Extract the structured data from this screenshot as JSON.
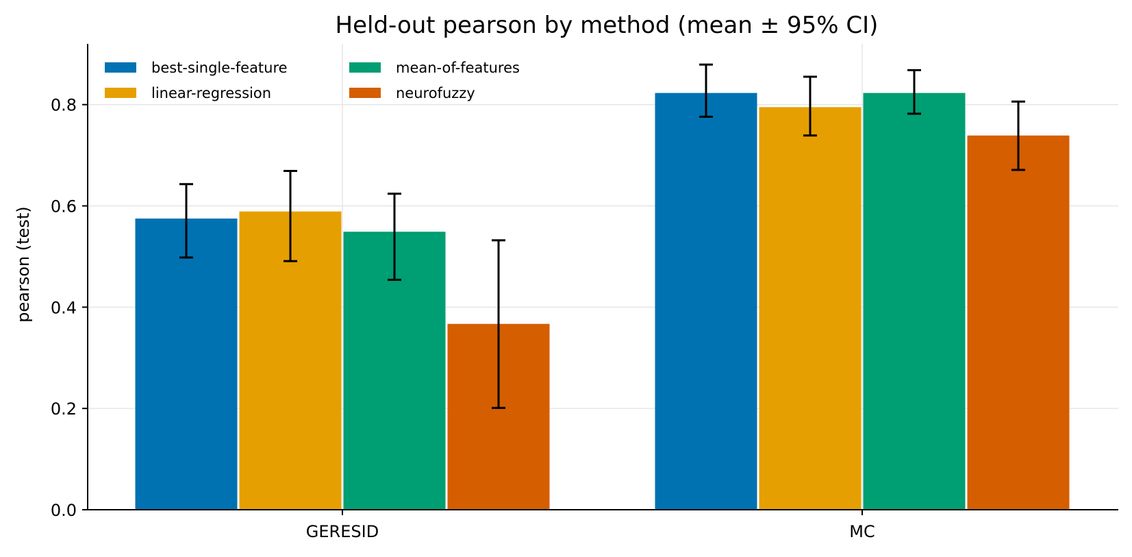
{
  "chart_data": {
    "type": "bar",
    "title": "Held-out pearson by method (mean ± 95% CI)",
    "xlabel": "",
    "ylabel": "pearson (test)",
    "categories": [
      "GERESID",
      "MC"
    ],
    "ylim": [
      0,
      0.92
    ],
    "yticks": [
      0.0,
      0.2,
      0.4,
      0.6,
      0.8
    ],
    "ytick_labels": [
      "0.0",
      "0.2",
      "0.4",
      "0.6",
      "0.8"
    ],
    "grid": true,
    "legend_position": "top-left",
    "legend_columns": 2,
    "series": [
      {
        "name": "best-single-feature",
        "color": "#0072b2",
        "values": [
          0.575,
          0.823
        ],
        "ci_low": [
          0.498,
          0.776
        ],
        "ci_high": [
          0.643,
          0.879
        ]
      },
      {
        "name": "linear-regression",
        "color": "#e69f00",
        "values": [
          0.589,
          0.795
        ],
        "ci_low": [
          0.491,
          0.739
        ],
        "ci_high": [
          0.669,
          0.855
        ]
      },
      {
        "name": "mean-of-features",
        "color": "#009e73",
        "values": [
          0.549,
          0.823
        ],
        "ci_low": [
          0.454,
          0.782
        ],
        "ci_high": [
          0.624,
          0.868
        ]
      },
      {
        "name": "neurofuzzy",
        "color": "#d55e00",
        "values": [
          0.367,
          0.739
        ],
        "ci_low": [
          0.201,
          0.671
        ],
        "ci_high": [
          0.532,
          0.806
        ]
      }
    ]
  }
}
